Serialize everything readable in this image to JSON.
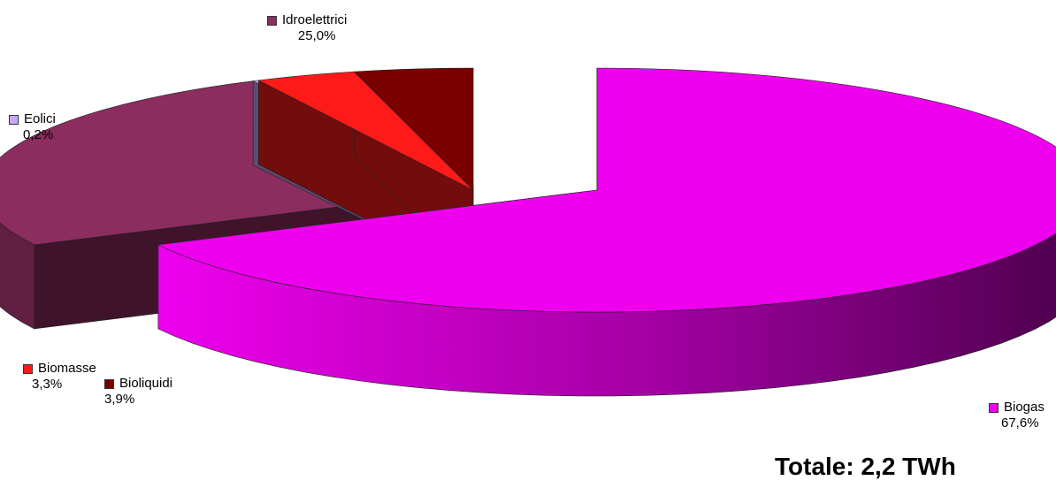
{
  "chart_data": {
    "type": "pie",
    "slices": [
      {
        "name": "Biogas",
        "value": 67.6,
        "label": "67,6%",
        "color": "#ee00ee"
      },
      {
        "name": "Idroelettrici",
        "value": 25.0,
        "label": "25,0%",
        "color": "#8b2d5e"
      },
      {
        "name": "Eolici",
        "value": 0.2,
        "label": "0,2%",
        "color": "#c8a8ff"
      },
      {
        "name": "Biomasse",
        "value": 3.3,
        "label": "3,3%",
        "color": "#ff1a1a"
      },
      {
        "name": "Bioliquidi",
        "value": 3.9,
        "label": "3,9%",
        "color": "#7a0000"
      }
    ],
    "total_label": "Totale: 2,2 TWh"
  }
}
